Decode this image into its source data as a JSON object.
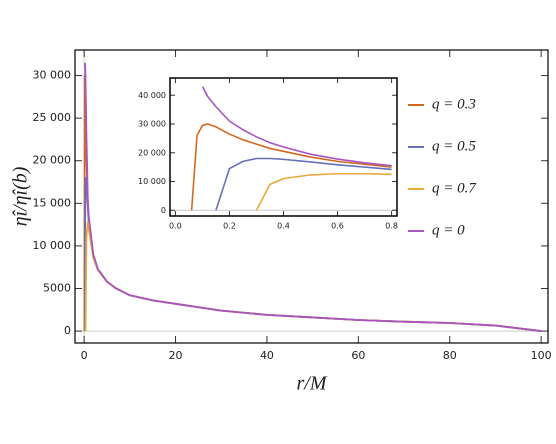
{
  "chart_data": [
    {
      "type": "line",
      "xlabel": "r/M",
      "ylabel": "ηî/ηî(b)",
      "x": [
        0.06,
        0.12,
        0.15,
        0.2,
        0.3,
        0.5,
        0.8,
        1,
        2,
        3,
        5,
        7,
        10,
        15,
        20,
        30,
        40,
        50,
        60,
        70,
        80,
        90,
        100
      ],
      "xlim": [
        -2,
        101.5
      ],
      "xticks": [
        0,
        20,
        40,
        60,
        80,
        100
      ],
      "ylim": [
        -1400,
        33000
      ],
      "yticks": [
        0,
        5000,
        {
          "value": 10000,
          "label": "10 000"
        },
        {
          "value": 15000,
          "label": "15 000"
        },
        {
          "value": 20000,
          "label": "20 000"
        },
        {
          "value": 25000,
          "label": "25 000"
        },
        {
          "value": 30000,
          "label": "30 000"
        }
      ],
      "series": [
        {
          "name": "q = 0.3",
          "color": "#d2691e",
          "values": [
            0,
            30000,
            28000,
            26000,
            24000,
            20000,
            15000,
            13000,
            8800,
            7200,
            5800,
            5000,
            4200,
            3600,
            3200,
            2400,
            1900,
            1600,
            1300,
            1100,
            950,
            650,
            0
          ]
        },
        {
          "name": "q = 0.5",
          "color": "#6670b8",
          "values": [
            null,
            null,
            0,
            12000,
            18000,
            17000,
            14500,
            12800,
            8700,
            7200,
            5800,
            5000,
            4200,
            3600,
            3200,
            2400,
            1900,
            1600,
            1300,
            1100,
            950,
            650,
            0
          ]
        },
        {
          "name": "q = 0.7",
          "color": "#e8a93a",
          "values": [
            null,
            null,
            null,
            null,
            0,
            11000,
            12800,
            12000,
            8600,
            7200,
            5800,
            5000,
            4200,
            3600,
            3200,
            2400,
            1900,
            1600,
            1300,
            1100,
            950,
            650,
            0
          ]
        },
        {
          "name": "q = 0",
          "color": "#a855c0",
          "values": [
            null,
            null,
            null,
            31500,
            29500,
            23000,
            15500,
            13500,
            9000,
            7300,
            5800,
            5000,
            4200,
            3600,
            3200,
            2400,
            1900,
            1600,
            1300,
            1100,
            950,
            650,
            0
          ]
        }
      ]
    },
    {
      "type": "line",
      "x": [
        0.06,
        0.08,
        0.1,
        0.12,
        0.15,
        0.2,
        0.25,
        0.3,
        0.35,
        0.4,
        0.5,
        0.6,
        0.7,
        0.8
      ],
      "xlim": [
        -0.02,
        0.82
      ],
      "xticks": [
        {
          "value": 0,
          "label": "0.0"
        },
        0.2,
        0.4,
        0.6,
        0.8
      ],
      "ylim": [
        -2000,
        46000
      ],
      "yticks": [
        0,
        {
          "value": 10000,
          "label": "10 000"
        },
        {
          "value": 20000,
          "label": "20 000"
        },
        {
          "value": 30000,
          "label": "30 000"
        },
        {
          "value": 40000,
          "label": "40 000"
        }
      ],
      "series": [
        {
          "color": "#d2691e",
          "values": [
            0,
            26000,
            29500,
            30000,
            29000,
            26500,
            24500,
            23000,
            21500,
            20500,
            18500,
            17000,
            16000,
            15000
          ]
        },
        {
          "color": "#6670b8",
          "values": [
            null,
            null,
            null,
            null,
            0,
            14500,
            17000,
            18000,
            18000,
            17700,
            16800,
            15800,
            15000,
            14200
          ]
        },
        {
          "color": "#e8a93a",
          "values": [
            null,
            null,
            null,
            null,
            null,
            null,
            null,
            0,
            9000,
            11000,
            12300,
            12700,
            12700,
            12500
          ]
        },
        {
          "color": "#a855c0",
          "values": [
            null,
            null,
            43000,
            39500,
            36000,
            31000,
            28000,
            25500,
            23500,
            22000,
            19500,
            17800,
            16500,
            15500
          ]
        }
      ]
    }
  ]
}
